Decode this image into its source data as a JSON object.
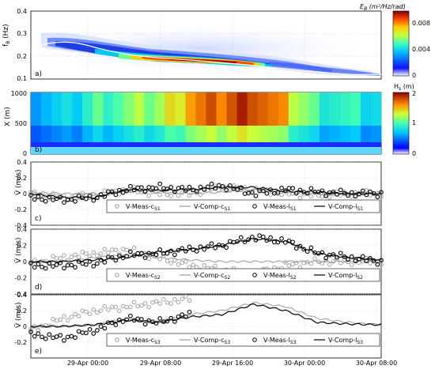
{
  "figure": {
    "panels": [
      "a)",
      "b)",
      "c)",
      "d)",
      "e)"
    ],
    "colorbar_a": {
      "label": "E_B (m²/Hz/rad)",
      "ticks": [
        "0",
        "0.004",
        "0.008"
      ],
      "range": [
        0,
        0.01
      ]
    },
    "colorbar_b": {
      "label": "H_s (m)",
      "ticks": [
        "0",
        "1",
        "2"
      ],
      "range": [
        0,
        2
      ]
    },
    "time_ticks": [
      "29-Apr 00:00",
      "29-Apr 08:00",
      "29-Apr 16:00",
      "30-Apr 00:00",
      "30-Apr 08:00"
    ],
    "colors": {
      "gray": "#9a9a9a",
      "black": "#000000"
    }
  },
  "chart_data": [
    {
      "type": "heatmap",
      "panel": "a)",
      "ylabel": "f_B (Hz)",
      "ylim": [
        0.1,
        0.4
      ],
      "yticks": [
        "0.1",
        "0.2",
        "0.3",
        "0.4"
      ],
      "x": [
        "28-Apr 14:00",
        "28-Apr 16:00",
        "28-Apr 20:00",
        "29-Apr 00:00",
        "29-Apr 04:00",
        "29-Apr 08:00",
        "29-Apr 12:00",
        "29-Apr 16:00",
        "29-Apr 20:00",
        "30-Apr 00:00",
        "30-Apr 04:00",
        "30-Apr 08:00"
      ],
      "ridge_freq_hz": [
        0.25,
        0.25,
        0.22,
        0.2,
        0.18,
        0.17,
        0.17,
        0.16,
        0.15,
        0.14,
        0.13,
        0.13
      ],
      "peak_energy": [
        0.003,
        0.004,
        0.004,
        0.005,
        0.007,
        0.009,
        0.01,
        0.009,
        0.005,
        0.003,
        0.002,
        0.001
      ]
    },
    {
      "type": "heatmap",
      "panel": "b)",
      "ylabel": "X (m)",
      "ylim": [
        0,
        1000
      ],
      "yticks": [
        "0",
        "500",
        "1000"
      ],
      "x": [
        "28-Apr 14:00",
        "28-Apr 16:00",
        "28-Apr 20:00",
        "29-Apr 00:00",
        "29-Apr 04:00",
        "29-Apr 08:00",
        "29-Apr 12:00",
        "29-Apr 16:00",
        "29-Apr 20:00",
        "30-Apr 00:00",
        "30-Apr 04:00",
        "30-Apr 08:00"
      ],
      "hs_offshore_m": [
        0.7,
        0.7,
        1.0,
        1.1,
        1.2,
        1.6,
        1.7,
        1.9,
        1.5,
        1.0,
        0.9,
        0.8
      ]
    },
    {
      "type": "line",
      "panel": "c)",
      "ylabel": "V̄ (m/s)",
      "ylim": [
        -0.4,
        0.4
      ],
      "yticks": [
        "-0.4",
        "-0.2",
        "0",
        "0.2",
        "0.4"
      ],
      "x": [
        "28-Apr 14:00",
        "28-Apr 16:00",
        "28-Apr 20:00",
        "29-Apr 00:00",
        "29-Apr 04:00",
        "29-Apr 08:00",
        "29-Apr 12:00",
        "29-Apr 16:00",
        "29-Apr 20:00",
        "30-Apr 00:00",
        "30-Apr 04:00",
        "30-Apr 08:00"
      ],
      "series": [
        {
          "name": "V-Meas-c",
          "sub": "S1",
          "style": "gray-circles",
          "values": [
            0.0,
            -0.05,
            -0.02,
            0.05,
            0.0,
            0.0,
            0.08,
            0.05,
            0.0,
            -0.02,
            0.0,
            0.0
          ]
        },
        {
          "name": "V-Comp-c",
          "sub": "S1",
          "style": "gray-line",
          "values": [
            0.02,
            0.0,
            0.0,
            0.03,
            0.02,
            0.0,
            0.02,
            0.05,
            0.02,
            0.0,
            0.0,
            0.0
          ]
        },
        {
          "name": "V-Meas-l",
          "sub": "S1",
          "style": "black-circles",
          "values": [
            -0.05,
            -0.08,
            -0.05,
            0.05,
            0.08,
            0.05,
            0.1,
            0.0,
            0.05,
            0.02,
            0.0,
            0.0
          ]
        },
        {
          "name": "V-Comp-l",
          "sub": "S1",
          "style": "black-line",
          "values": [
            0.0,
            -0.05,
            -0.05,
            0.05,
            0.04,
            0.05,
            0.08,
            0.08,
            0.03,
            0.02,
            0.0,
            0.0
          ]
        }
      ]
    },
    {
      "type": "line",
      "panel": "d)",
      "ylabel": "V̄ (m/s)",
      "ylim": [
        -0.4,
        0.4
      ],
      "yticks": [
        "-0.4",
        "-0.2",
        "0",
        "0.2",
        "0.4"
      ],
      "x": [
        "28-Apr 14:00",
        "28-Apr 16:00",
        "28-Apr 20:00",
        "29-Apr 00:00",
        "29-Apr 04:00",
        "29-Apr 08:00",
        "29-Apr 12:00",
        "29-Apr 16:00",
        "29-Apr 20:00",
        "30-Apr 00:00",
        "30-Apr 04:00",
        "30-Apr 08:00"
      ],
      "series": [
        {
          "name": "V-Meas-c",
          "sub": "S2",
          "style": "gray-circles",
          "values": [
            -0.02,
            0.05,
            0.1,
            0.15,
            0.05,
            -0.05,
            -0.1,
            -0.15,
            -0.05,
            0.0,
            0.0,
            0.0
          ]
        },
        {
          "name": "V-Comp-c",
          "sub": "S2",
          "style": "gray-line",
          "values": [
            0.0,
            0.0,
            0.05,
            0.08,
            0.05,
            0.02,
            0.0,
            0.0,
            0.0,
            0.0,
            0.0,
            0.0
          ]
        },
        {
          "name": "V-Meas-l",
          "sub": "S2",
          "style": "black-circles",
          "values": [
            -0.05,
            -0.05,
            -0.02,
            0.08,
            0.1,
            0.15,
            0.2,
            0.3,
            0.25,
            0.1,
            0.05,
            0.0
          ]
        },
        {
          "name": "V-Comp-l",
          "sub": "S2",
          "style": "black-line",
          "values": [
            0.0,
            0.0,
            0.02,
            0.05,
            0.12,
            0.15,
            0.2,
            0.28,
            0.25,
            0.1,
            0.05,
            0.02
          ]
        }
      ]
    },
    {
      "type": "line",
      "panel": "e)",
      "ylabel": "V̄ (m/s)",
      "ylim": [
        -0.4,
        0.4
      ],
      "yticks": [
        "-0.2",
        "0",
        "0.2",
        "0.4"
      ],
      "x": [
        "28-Apr 14:00",
        "28-Apr 16:00",
        "28-Apr 20:00",
        "29-Apr 00:00",
        "29-Apr 04:00",
        "29-Apr 08:00",
        "29-Apr 12:00",
        "29-Apr 16:00",
        "29-Apr 20:00",
        "30-Apr 00:00",
        "30-Apr 04:00",
        "30-Apr 08:00"
      ],
      "series": [
        {
          "name": "V-Meas-c",
          "sub": "S3",
          "style": "gray-circles",
          "values": [
            -0.05,
            0.1,
            0.2,
            0.25,
            0.3,
            0.35,
            null,
            null,
            null,
            null,
            null,
            null
          ]
        },
        {
          "name": "V-Comp-c",
          "sub": "S3",
          "style": "gray-line",
          "values": [
            0.0,
            0.0,
            0.02,
            0.1,
            0.05,
            0.15,
            0.2,
            0.3,
            0.25,
            0.1,
            0.05,
            0.02
          ]
        },
        {
          "name": "V-Meas-l",
          "sub": "S3",
          "style": "black-circles",
          "values": [
            -0.1,
            -0.15,
            -0.05,
            0.1,
            0.05,
            0.15,
            null,
            null,
            null,
            null,
            null,
            null
          ]
        },
        {
          "name": "V-Comp-l",
          "sub": "S3",
          "style": "black-line",
          "values": [
            0.0,
            0.0,
            0.02,
            0.08,
            0.05,
            0.12,
            0.15,
            0.28,
            0.2,
            0.05,
            0.03,
            0.02
          ]
        }
      ]
    }
  ]
}
